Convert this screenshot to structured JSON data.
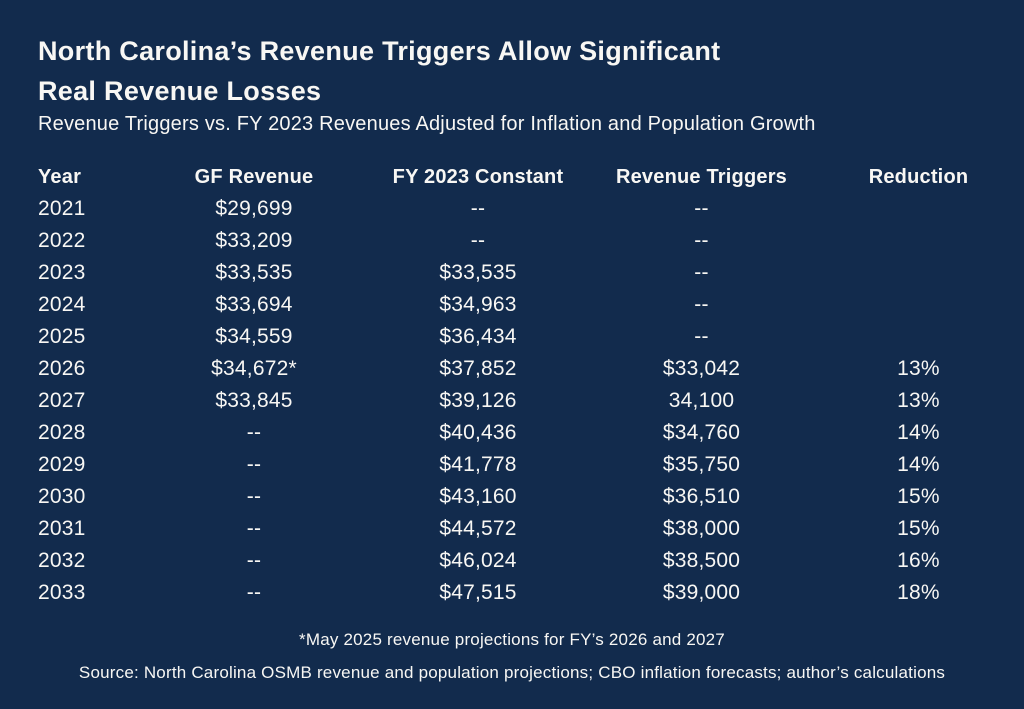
{
  "colors": {
    "background": "#122b4d",
    "text": "#f8f7f4"
  },
  "header": {
    "title": "North Carolina’s Revenue Triggers Allow Significant\nReal Revenue Losses",
    "subtitle": "Revenue Triggers vs. FY 2023 Revenues Adjusted for Inflation and Population Growth"
  },
  "footer": {
    "footnote": "*May 2025 revenue projections for FY’s 2026 and 2027",
    "source": "Source: North Carolina OSMB revenue and population projections; CBO inflation forecasts; author’s calculations"
  },
  "chart_data": {
    "type": "table",
    "title": "North Carolina’s Revenue Triggers Allow Significant Real Revenue Losses",
    "subtitle": "Revenue Triggers vs. FY 2023 Revenues Adjusted for Inflation and Population Growth",
    "columns": [
      "Year",
      "GF Revenue",
      "FY 2023 Constant",
      "Revenue Triggers",
      "Reduction"
    ],
    "rows": [
      [
        "2021",
        "$29,699",
        "--",
        "--",
        ""
      ],
      [
        "2022",
        "$33,209",
        "--",
        "--",
        ""
      ],
      [
        "2023",
        "$33,535",
        "$33,535",
        "--",
        ""
      ],
      [
        "2024",
        "$33,694",
        "$34,963",
        "--",
        ""
      ],
      [
        "2025",
        "$34,559",
        "$36,434",
        "--",
        ""
      ],
      [
        "2026",
        "$34,672*",
        "$37,852",
        "$33,042",
        "13%"
      ],
      [
        "2027",
        "$33,845",
        "$39,126",
        "34,100",
        "13%"
      ],
      [
        "2028",
        "--",
        "$40,436",
        "$34,760",
        "14%"
      ],
      [
        "2029",
        "--",
        "$41,778",
        "$35,750",
        "14%"
      ],
      [
        "2030",
        "--",
        "$43,160",
        "$36,510",
        "15%"
      ],
      [
        "2031",
        "--",
        "$44,572",
        "$38,000",
        "15%"
      ],
      [
        "2032",
        "--",
        "$46,024",
        "$38,500",
        "16%"
      ],
      [
        "2033",
        "--",
        "$47,515",
        "$39,000",
        "18%"
      ]
    ],
    "footnote": "*May 2025 revenue projections for FY’s 2026 and 2027",
    "source": "Source: North Carolina OSMB revenue and population projections; CBO inflation forecasts; author’s calculations"
  }
}
